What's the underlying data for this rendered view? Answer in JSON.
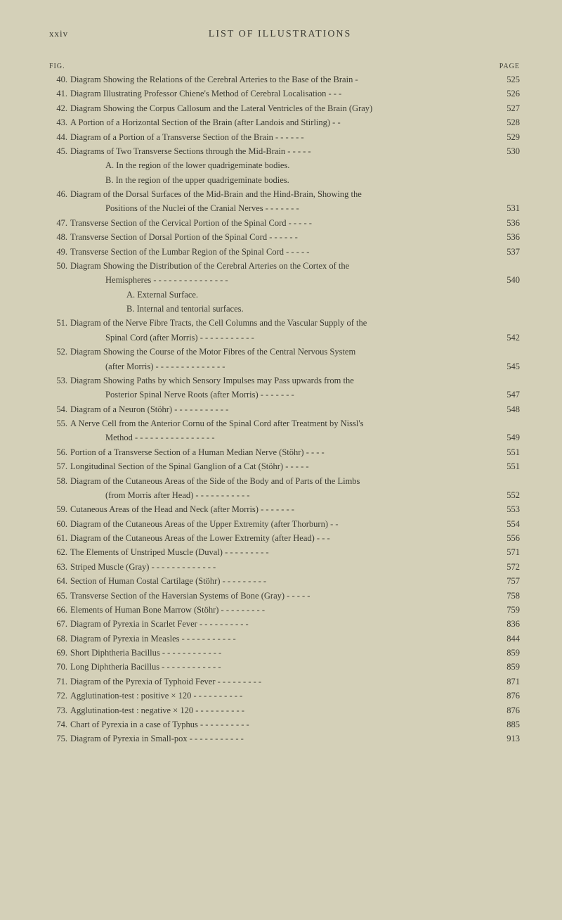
{
  "header": {
    "roman": "xxiv",
    "title": "LIST OF ILLUSTRATIONS",
    "col_fig": "FIG.",
    "col_page": "PAGE"
  },
  "entries": [
    {
      "num": "40.",
      "text": "Diagram Showing the Relations of the Cerebral Arteries to the Base of the Brain   -",
      "page": "525"
    },
    {
      "num": "41.",
      "text": "Diagram Illustrating Professor Chiene's Method of Cerebral Localisation   -      -      -",
      "page": "526"
    },
    {
      "num": "42.",
      "text": "Diagram Showing the Corpus Callosum and the Lateral Ventricles of the Brain (Gray)",
      "page": "527"
    },
    {
      "num": "43.",
      "text": "A Portion of a Horizontal Section of the Brain (after Landois and Stirling)        -     -",
      "page": "528"
    },
    {
      "num": "44.",
      "text": "Diagram of a Portion of a Transverse Section of the Brain -      -      -      -      -      -",
      "page": "529"
    },
    {
      "num": "45.",
      "text": "Diagrams of Two Transverse Sections through the Mid-Brain      -      -      -      -      -",
      "page": "530"
    },
    {
      "num": "",
      "text": "A. In the region of the lower quadrigeminate bodies.",
      "page": "",
      "sub": true
    },
    {
      "num": "",
      "text": "B. In the region of the upper quadrigeminate bodies.",
      "page": "",
      "sub": true
    },
    {
      "num": "46.",
      "text": "Diagram of the Dorsal Surfaces of the Mid-Brain and the Hind-Brain, Showing the",
      "page": ""
    },
    {
      "num": "",
      "text": "Positions of the Nuclei of the Cranial Nerves      -      -      -      -      -      -      -",
      "page": "531",
      "sub": true
    },
    {
      "num": "47.",
      "text": "Transverse Section of the Cervical Portion of the Spinal Cord      -      -      -      -      -",
      "page": "536"
    },
    {
      "num": "48.",
      "text": "Transverse Section of Dorsal Portion of the Spinal Cord      -      -      -      -      -      -",
      "page": "536"
    },
    {
      "num": "49.",
      "text": "Transverse Section of the Lumbar Region of the Spinal Cord      -      -      -      -      -",
      "page": "537"
    },
    {
      "num": "50.",
      "text": "Diagram Showing the Distribution of the Cerebral Arteries on the Cortex of the",
      "page": ""
    },
    {
      "num": "",
      "text": "Hemispheres -      -      -      -      -      -      -      -      -      -      -      -      -      -      -",
      "page": "540",
      "sub": true
    },
    {
      "num": "",
      "text": "A. External Surface.",
      "page": "",
      "sub": true,
      "extra_indent": true
    },
    {
      "num": "",
      "text": "B. Internal and tentorial surfaces.",
      "page": "",
      "sub": true,
      "extra_indent": true
    },
    {
      "num": "51.",
      "text": "Diagram of the Nerve Fibre Tracts, the Cell Columns and the Vascular Supply of the",
      "page": ""
    },
    {
      "num": "",
      "text": "Spinal Cord (after Morris)      -      -      -      -      -      -      -      -      -      -      -",
      "page": "542",
      "sub": true
    },
    {
      "num": "52.",
      "text": "Diagram Showing the Course of the Motor Fibres of the Central Nervous System",
      "page": ""
    },
    {
      "num": "",
      "text": "(after Morris) -      -      -      -      -      -      -      -      -      -      -      -      -      -",
      "page": "545",
      "sub": true
    },
    {
      "num": "53.",
      "text": "Diagram Showing Paths by which Sensory Impulses may Pass upwards from the",
      "page": ""
    },
    {
      "num": "",
      "text": "Posterior Spinal Nerve Roots (after Morris)      -      -      -      -      -      -      -",
      "page": "547",
      "sub": true
    },
    {
      "num": "54.",
      "text": "Diagram of a Neuron (Stöhr)      -      -      -      -      -      -      -      -      -      -      -",
      "page": "548"
    },
    {
      "num": "55.",
      "text": "A Nerve Cell from the Anterior Cornu of the Spinal Cord after Treatment by Nissl's",
      "page": ""
    },
    {
      "num": "",
      "text": "Method -      -      -      -      -      -      -      -      -      -      -      -      -      -      -      -",
      "page": "549",
      "sub": true
    },
    {
      "num": "56.",
      "text": "Portion of a Transverse Section of a Human Median Nerve (Stöhr)   -      -      -      -",
      "page": "551"
    },
    {
      "num": "57.",
      "text": "Longitudinal Section of the Spinal Ganglion of a Cat (Stöhr) -      -      -      -      -",
      "page": "551"
    },
    {
      "num": "58.",
      "text": "Diagram of the Cutaneous Areas of the Side of the Body and of Parts of the Limbs",
      "page": ""
    },
    {
      "num": "",
      "text": "(from Morris after Head)      -      -      -      -      -      -      -      -      -      -      -",
      "page": "552",
      "sub": true
    },
    {
      "num": "59.",
      "text": "Cutaneous Areas of the Head and Neck (after Morris) -      -      -      -      -      -      -",
      "page": "553"
    },
    {
      "num": "60.",
      "text": "Diagram of the Cutaneous Areas of the Upper Extremity (after Thorburn)      -      -",
      "page": "554"
    },
    {
      "num": "61.",
      "text": "Diagram of the Cutaneous Areas of the Lower Extremity (after Head)      -      -      -",
      "page": "556"
    },
    {
      "num": "62.",
      "text": "The Elements of Unstriped Muscle (Duval) -      -      -      -      -      -      -      -      -",
      "page": "571"
    },
    {
      "num": "63.",
      "text": "Striped Muscle (Gray)  -      -      -      -      -      -      -      -      -      -      -      -      -",
      "page": "572"
    },
    {
      "num": "64.",
      "text": "Section of Human Costal Cartilage (Stöhr) -      -      -      -      -      -      -      -      -",
      "page": "757"
    },
    {
      "num": "65.",
      "text": "Transverse Section of the Haversian Systems of Bone (Gray)      -      -      -      -      -",
      "page": "758"
    },
    {
      "num": "66.",
      "text": "Elements of Human Bone Marrow (Stöhr)  -      -      -      -      -      -      -      -      -",
      "page": "759"
    },
    {
      "num": "67.",
      "text": "Diagram of Pyrexia in Scarlet Fever   -      -      -      -      -      -      -      -      -      -",
      "page": "836"
    },
    {
      "num": "68.",
      "text": "Diagram of Pyrexia in Measles   -      -      -      -      -      -      -      -      -      -      -",
      "page": "844"
    },
    {
      "num": "69.",
      "text": "Short Diphtheria Bacillus      -      -      -      -      -      -      -      -      -      -      -      -",
      "page": "859"
    },
    {
      "num": "70.",
      "text": "Long Diphtheria Bacillus      -      -      -      -      -      -      -      -      -      -      -      -",
      "page": "859"
    },
    {
      "num": "71.",
      "text": "Diagram of the Pyrexia of Typhoid Fever   -      -      -      -      -      -      -      -      -",
      "page": "871"
    },
    {
      "num": "72.",
      "text": "Agglutination-test : positive × 120        -      -      -      -      -      -      -      -      -      -",
      "page": "876"
    },
    {
      "num": "73.",
      "text": "Agglutination-test : negative × 120       -      -      -      -      -      -      -      -      -      -",
      "page": "876"
    },
    {
      "num": "74.",
      "text": "Chart of Pyrexia in a case of Typhus    -      -      -      -      -      -      -      -      -      -",
      "page": "885"
    },
    {
      "num": "75.",
      "text": "Diagram of Pyrexia in Small-pox -      -      -      -      -      -      -      -      -      -      -",
      "page": "913"
    }
  ]
}
